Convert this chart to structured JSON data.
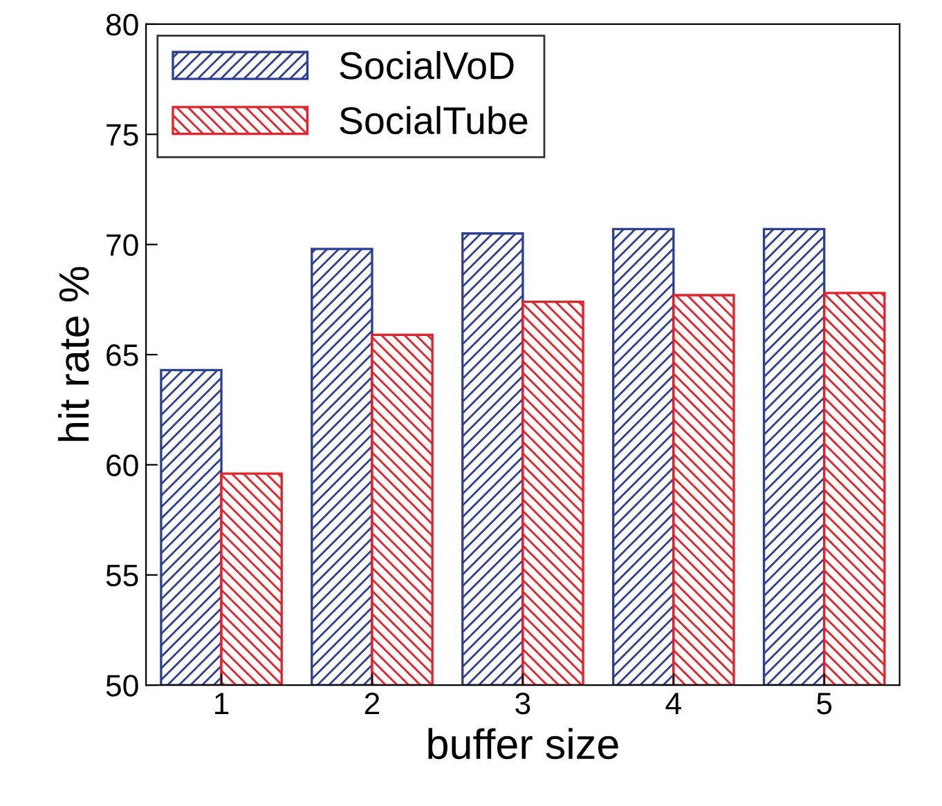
{
  "chart_data": {
    "type": "bar",
    "xlabel": "buffer size",
    "ylabel": "hit rate %",
    "categories": [
      "1",
      "2",
      "3",
      "4",
      "5"
    ],
    "series": [
      {
        "name": "SocialVoD",
        "color": "#2b3f99",
        "values": [
          64.3,
          69.8,
          70.5,
          70.7,
          70.7
        ]
      },
      {
        "name": "SocialTube",
        "color": "#ee1c24",
        "values": [
          59.6,
          65.9,
          67.4,
          67.7,
          67.8
        ]
      }
    ],
    "ylim": [
      50,
      80
    ],
    "yticks": [
      50,
      55,
      60,
      65,
      70,
      75,
      80
    ],
    "grid": false,
    "legend": "top left"
  }
}
